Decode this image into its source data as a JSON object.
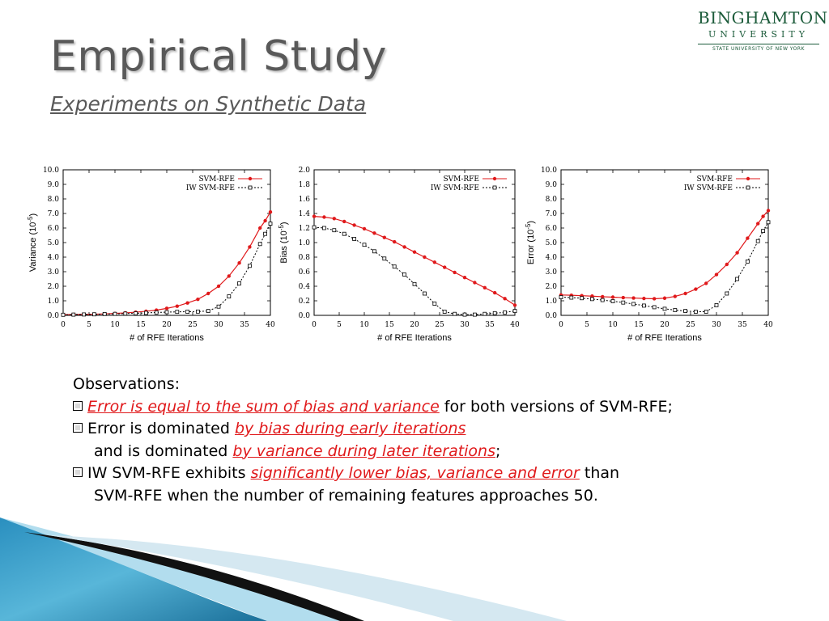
{
  "slide": {
    "title": "Empirical Study",
    "subtitle": "Experiments on Synthetic Data"
  },
  "logo": {
    "line1": "BINGHAMTON",
    "line2": "UNIVERSITY",
    "line3": "STATE UNIVERSITY OF NEW YORK"
  },
  "observations": {
    "heading": "Observations:",
    "b1_red": "Error is equal to the sum of bias and variance",
    "b1_rest": " for both versions of SVM-RFE;",
    "b2_pre": "Error is dominated ",
    "b2_red": "by bias during early iterations",
    "b2_cont_pre": "and is dominated ",
    "b2_cont_red": "by variance during  later iterations",
    "b2_cont_end": ";",
    "b3_pre": "IW SVM-RFE exhibits ",
    "b3_red": "significantly lower bias, variance and error",
    "b3_rest": " than",
    "b3_cont": "SVM-RFE when the number of remaining features approaches 50."
  },
  "colors": {
    "red_series": "#e0191b",
    "black_series": "#000000",
    "title_gray": "#595959",
    "logo_green": "#1d5c3b"
  },
  "chart_data": [
    {
      "type": "line",
      "xlabel": "# of RFE Iterations",
      "ylabel": "Variance (10^-5)",
      "xlim": [
        0,
        40
      ],
      "ylim": [
        0,
        10
      ],
      "xticks": [
        "0",
        "5",
        "10",
        "15",
        "20",
        "25",
        "30",
        "35",
        "40"
      ],
      "yticks": [
        "0.0",
        "1.0",
        "2.0",
        "3.0",
        "4.0",
        "5.0",
        "6.0",
        "7.0",
        "8.0",
        "9.0",
        "10.0"
      ],
      "legend": "top-right",
      "x": [
        0,
        2,
        4,
        6,
        8,
        10,
        12,
        14,
        16,
        18,
        20,
        22,
        24,
        26,
        28,
        30,
        32,
        34,
        36,
        38,
        39,
        40
      ],
      "series": [
        {
          "name": "SVM-RFE",
          "values": [
            0.05,
            0.06,
            0.07,
            0.08,
            0.1,
            0.13,
            0.17,
            0.22,
            0.28,
            0.36,
            0.48,
            0.63,
            0.85,
            1.1,
            1.5,
            2.0,
            2.7,
            3.6,
            4.7,
            6.0,
            6.5,
            7.1
          ]
        },
        {
          "name": "IW SVM-RFE",
          "values": [
            0.04,
            0.05,
            0.06,
            0.07,
            0.09,
            0.1,
            0.12,
            0.14,
            0.17,
            0.2,
            0.22,
            0.24,
            0.25,
            0.26,
            0.3,
            0.6,
            1.3,
            2.2,
            3.4,
            4.9,
            5.6,
            6.3
          ]
        }
      ]
    },
    {
      "type": "line",
      "xlabel": "# of RFE Iterations",
      "ylabel": "Bias (10^-5)",
      "xlim": [
        0,
        40
      ],
      "ylim": [
        0,
        2
      ],
      "xticks": [
        "0",
        "5",
        "10",
        "15",
        "20",
        "25",
        "30",
        "35",
        "40"
      ],
      "yticks": [
        "0.0",
        "0.2",
        "0.4",
        "0.6",
        "0.8",
        "1.0",
        "1.2",
        "1.4",
        "1.6",
        "1.8",
        "2.0"
      ],
      "legend": "top-right",
      "x": [
        0,
        2,
        4,
        6,
        8,
        10,
        12,
        14,
        16,
        18,
        20,
        22,
        24,
        26,
        28,
        30,
        32,
        34,
        36,
        38,
        40
      ],
      "series": [
        {
          "name": "SVM-RFE",
          "values": [
            1.36,
            1.35,
            1.33,
            1.29,
            1.24,
            1.19,
            1.13,
            1.07,
            1.01,
            0.94,
            0.87,
            0.8,
            0.73,
            0.66,
            0.59,
            0.52,
            0.45,
            0.38,
            0.31,
            0.23,
            0.14
          ]
        },
        {
          "name": "IW SVM-RFE",
          "values": [
            1.21,
            1.2,
            1.17,
            1.12,
            1.05,
            0.97,
            0.88,
            0.78,
            0.67,
            0.56,
            0.43,
            0.3,
            0.16,
            0.05,
            0.02,
            0.01,
            0.01,
            0.02,
            0.03,
            0.04,
            0.06
          ]
        }
      ]
    },
    {
      "type": "line",
      "xlabel": "# of RFE Iterations",
      "ylabel": "Error (10^-5)",
      "xlim": [
        0,
        40
      ],
      "ylim": [
        0,
        10
      ],
      "xticks": [
        "0",
        "5",
        "10",
        "15",
        "20",
        "25",
        "30",
        "35",
        "40"
      ],
      "yticks": [
        "0.0",
        "1.0",
        "2.0",
        "3.0",
        "4.0",
        "5.0",
        "6.0",
        "7.0",
        "8.0",
        "9.0",
        "10.0"
      ],
      "legend": "top-right",
      "x": [
        0,
        2,
        4,
        6,
        8,
        10,
        12,
        14,
        16,
        18,
        20,
        22,
        24,
        26,
        28,
        30,
        32,
        34,
        36,
        38,
        39,
        40
      ],
      "series": [
        {
          "name": "SVM-RFE",
          "values": [
            1.4,
            1.38,
            1.35,
            1.32,
            1.28,
            1.25,
            1.22,
            1.19,
            1.16,
            1.14,
            1.18,
            1.3,
            1.5,
            1.8,
            2.2,
            2.8,
            3.5,
            4.3,
            5.3,
            6.3,
            6.8,
            7.2
          ]
        },
        {
          "name": "IW SVM-RFE",
          "values": [
            1.25,
            1.22,
            1.18,
            1.12,
            1.05,
            0.97,
            0.88,
            0.78,
            0.67,
            0.56,
            0.45,
            0.36,
            0.3,
            0.25,
            0.25,
            0.7,
            1.5,
            2.5,
            3.7,
            5.1,
            5.8,
            6.4
          ]
        }
      ]
    }
  ]
}
